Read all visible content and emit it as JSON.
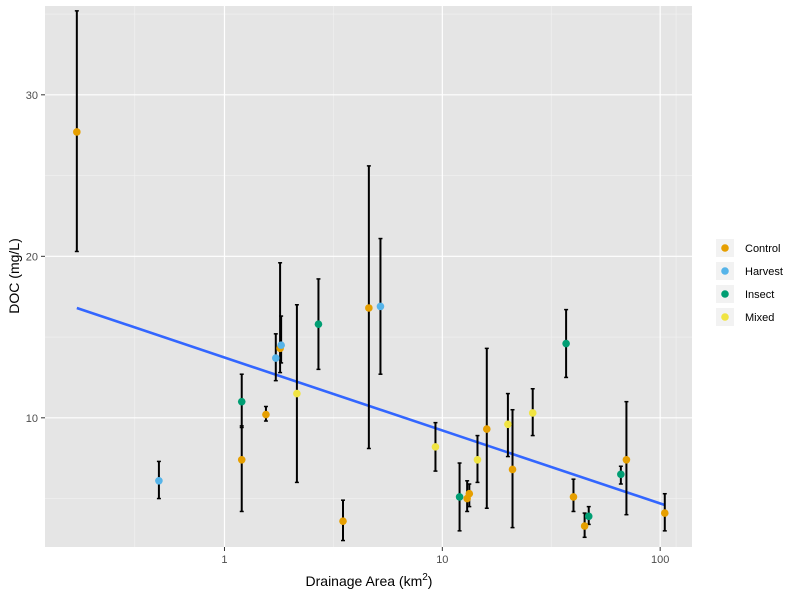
{
  "chart_data": {
    "type": "scatter",
    "title": "",
    "xlabel": "Drainage Area (km",
    "xlabel_superscript": "2",
    "xlabel_suffix": ")",
    "ylabel": "DOC (mg/L)",
    "x_scale": "log10",
    "xlim": [
      0.15,
      140
    ],
    "ylim": [
      2,
      35.5
    ],
    "x_ticks": [
      {
        "value": 1,
        "label": "1"
      },
      {
        "value": 10,
        "label": "10"
      },
      {
        "value": 100,
        "label": "100"
      }
    ],
    "y_ticks": [
      {
        "value": 10,
        "label": "10"
      },
      {
        "value": 20,
        "label": "20"
      },
      {
        "value": 30,
        "label": "30"
      }
    ],
    "grid": true,
    "panel_background": "#e5e5e5",
    "grid_color": "#ffffff",
    "legend_position": "right",
    "series": [
      {
        "name": "Control",
        "color": "#e69f00",
        "points": [
          {
            "x": 0.21,
            "y": 27.7,
            "ymin": 20.3,
            "ymax": 35.2
          },
          {
            "x": 1.2,
            "y": 7.4,
            "ymin": 4.2,
            "ymax": 9.5
          },
          {
            "x": 1.55,
            "y": 10.2,
            "ymin": 9.8,
            "ymax": 10.7
          },
          {
            "x": 1.8,
            "y": 14.3,
            "ymin": 12.8,
            "ymax": 19.6
          },
          {
            "x": 3.5,
            "y": 3.6,
            "ymin": 2.4,
            "ymax": 4.9
          },
          {
            "x": 4.6,
            "y": 16.8,
            "ymin": 8.1,
            "ymax": 25.6
          },
          {
            "x": 13.0,
            "y": 5.0,
            "ymin": 4.2,
            "ymax": 6.1
          },
          {
            "x": 13.3,
            "y": 5.3,
            "ymin": 4.5,
            "ymax": 5.9
          },
          {
            "x": 16.0,
            "y": 9.3,
            "ymin": 4.4,
            "ymax": 14.3
          },
          {
            "x": 21.0,
            "y": 6.8,
            "ymin": 3.2,
            "ymax": 10.5
          },
          {
            "x": 40.0,
            "y": 5.1,
            "ymin": 4.2,
            "ymax": 6.2
          },
          {
            "x": 45.0,
            "y": 3.3,
            "ymin": 2.6,
            "ymax": 4.1
          },
          {
            "x": 70.0,
            "y": 7.4,
            "ymin": 4.0,
            "ymax": 11.0
          },
          {
            "x": 105.0,
            "y": 4.1,
            "ymin": 3.0,
            "ymax": 5.3
          }
        ]
      },
      {
        "name": "Harvest",
        "color": "#56b4e9",
        "points": [
          {
            "x": 0.5,
            "y": 6.1,
            "ymin": 5.0,
            "ymax": 7.3
          },
          {
            "x": 1.72,
            "y": 13.7,
            "ymin": 12.3,
            "ymax": 15.2
          },
          {
            "x": 1.82,
            "y": 14.5,
            "ymin": 13.4,
            "ymax": 16.3
          },
          {
            "x": 5.2,
            "y": 16.9,
            "ymin": 12.7,
            "ymax": 21.1
          }
        ]
      },
      {
        "name": "Insect",
        "color": "#009e73",
        "points": [
          {
            "x": 1.2,
            "y": 11.0,
            "ymin": 9.4,
            "ymax": 12.7
          },
          {
            "x": 2.7,
            "y": 15.8,
            "ymin": 13.0,
            "ymax": 18.6
          },
          {
            "x": 12.0,
            "y": 5.1,
            "ymin": 3.0,
            "ymax": 7.2
          },
          {
            "x": 37.0,
            "y": 14.6,
            "ymin": 12.5,
            "ymax": 16.7
          },
          {
            "x": 47.0,
            "y": 3.9,
            "ymin": 3.4,
            "ymax": 4.5
          },
          {
            "x": 66.0,
            "y": 6.5,
            "ymin": 5.9,
            "ymax": 7.0
          }
        ]
      },
      {
        "name": "Mixed",
        "color": "#f0e442",
        "points": [
          {
            "x": 2.15,
            "y": 11.5,
            "ymin": 6.0,
            "ymax": 17.0
          },
          {
            "x": 9.3,
            "y": 8.2,
            "ymin": 6.7,
            "ymax": 9.7
          },
          {
            "x": 14.5,
            "y": 7.4,
            "ymin": 6.0,
            "ymax": 8.9
          },
          {
            "x": 20.0,
            "y": 9.6,
            "ymin": 7.6,
            "ymax": 11.5
          },
          {
            "x": 26.0,
            "y": 10.3,
            "ymin": 8.9,
            "ymax": 11.8
          }
        ]
      }
    ],
    "trend_line": {
      "color": "#3366ff",
      "x": [
        0.21,
        105.0
      ],
      "y": [
        16.8,
        4.6
      ]
    },
    "error_bar_color": "#000000"
  }
}
